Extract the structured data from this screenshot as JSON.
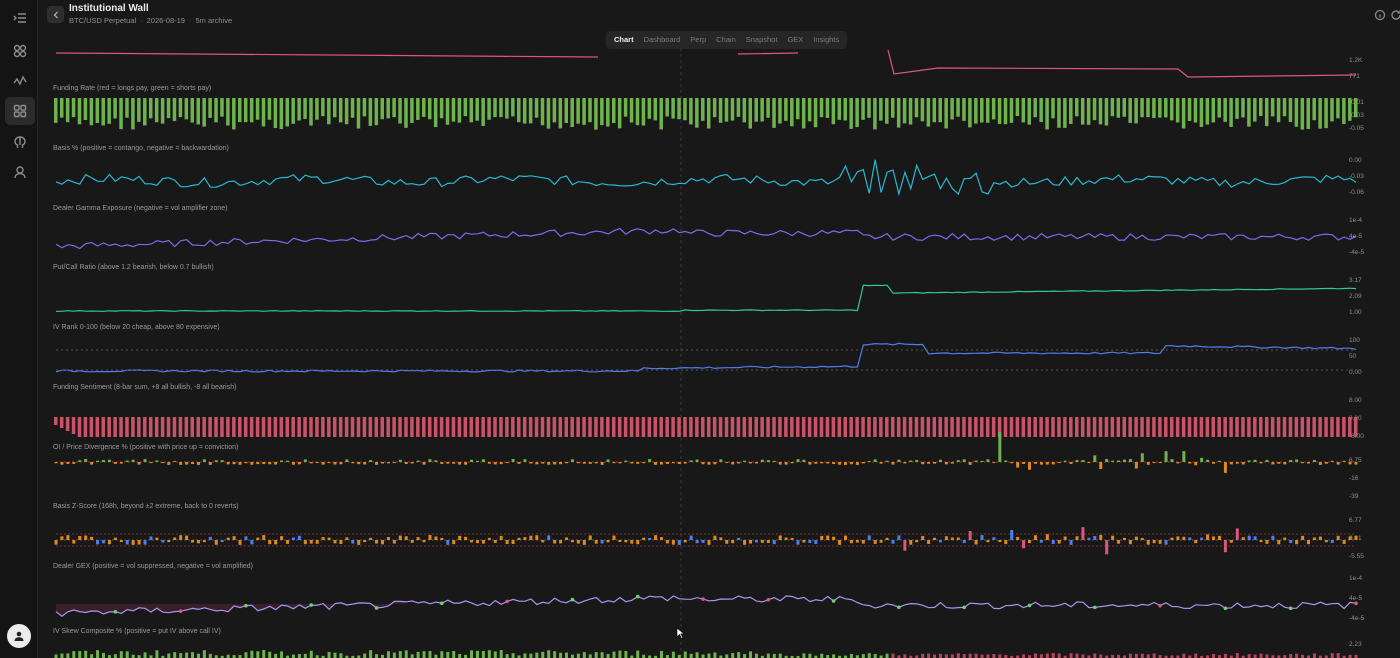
{
  "app": {
    "title": "Institutional Wall",
    "pair": "BTC/USD Perpetual",
    "date": "2026-08-19",
    "archive": "5m archive"
  },
  "sidebar": {
    "items": [
      {
        "icon": "collapse-menu-icon"
      },
      {
        "icon": "grid-icon"
      },
      {
        "icon": "pulse-icon"
      },
      {
        "icon": "dashboard-icon",
        "active": true
      },
      {
        "icon": "brain-icon"
      },
      {
        "icon": "user-icon"
      }
    ]
  },
  "tabs": [
    {
      "label": "Chart",
      "active": true
    },
    {
      "label": "Dashboard"
    },
    {
      "label": "Perp"
    },
    {
      "label": "Chain"
    },
    {
      "label": "Snapshot"
    },
    {
      "label": "GEX"
    },
    {
      "label": "Insights"
    }
  ],
  "colors": {
    "pink": "#e0557a",
    "green": "#6fb34f",
    "cyan": "#27b8d2",
    "purple": "#7b6bf0",
    "teal": "#2fc89a",
    "blue": "#4f7df0",
    "red": "#c95468",
    "orange": "#e08a1c",
    "violet": "#a894f2"
  },
  "panels": [
    {
      "id": "oi",
      "label": "",
      "ticks": [
        "1.2K",
        "771"
      ]
    },
    {
      "id": "funding",
      "label": "Funding Rate (red = longs pay, green = shorts pay)",
      "ticks": [
        "-0.01",
        "-0.03",
        "-0.05"
      ]
    },
    {
      "id": "basis",
      "label": "Basis % (positive = contango, negative = backwardation)",
      "ticks": [
        "0.00",
        "-0.03",
        "-0.06"
      ]
    },
    {
      "id": "gamma",
      "label": "Dealer Gamma Exposure (negative = vol amplifier zone)",
      "ticks": [
        "1e-4",
        "4e-5",
        "-4e-5"
      ]
    },
    {
      "id": "pcr",
      "label": "Put/Call Ratio (above 1.2 bearish, below 0.7 bullish)",
      "ticks": [
        "3.17",
        "2.09",
        "1.00"
      ]
    },
    {
      "id": "ivrank",
      "label": "IV Rank 0-100 (below 20 cheap, above 80 expensive)",
      "ticks": [
        "100",
        "50",
        "0.00"
      ]
    },
    {
      "id": "sentiment",
      "label": "Funding Sentiment (8-bar sum, +8 all bullish, -8 all bearish)",
      "ticks": [
        "8.00",
        "0.00",
        "-8.00"
      ]
    },
    {
      "id": "oidiv",
      "label": "OI / Price Divergence % (positive with price up = conviction)",
      "ticks": [
        "6.75",
        "-16",
        "-39"
      ]
    },
    {
      "id": "zscore",
      "label": "Basis Z-Score (168h, beyond ±2 extreme, back to 0 reverts)",
      "ticks": [
        "6.77",
        "0.61",
        "-5.55"
      ]
    },
    {
      "id": "gex",
      "label": "Dealer GEX (positive = vol suppressed, negative = vol amplified)",
      "ticks": [
        "1e-4",
        "4e-5",
        "-4e-5"
      ]
    },
    {
      "id": "skew",
      "label": "IV Skew Composite % (positive = put IV above call IV)",
      "ticks": [
        "2.23"
      ]
    }
  ]
}
